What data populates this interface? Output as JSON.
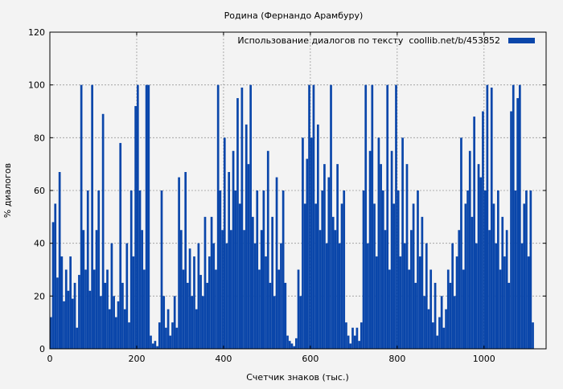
{
  "chart_data": {
    "type": "bar",
    "title": "Родина (Фернандо Арамбуру)",
    "xlabel": "Счетчик знаков (тыс.)",
    "ylabel": "% диалогов",
    "legend": {
      "label": "Использование диалогов по тексту  coollib.net/b/453852",
      "placement": "top-right"
    },
    "color": "#0a46aa",
    "grid": true,
    "xlim": [
      0,
      1143
    ],
    "ylim": [
      0,
      120
    ],
    "xticks": [
      0,
      200,
      400,
      600,
      800,
      1000
    ],
    "yticks": [
      0,
      20,
      40,
      60,
      80,
      100,
      120
    ],
    "x_step": 5,
    "values": [
      12,
      48,
      55,
      27,
      67,
      35,
      18,
      30,
      22,
      35,
      19,
      25,
      8,
      28,
      100,
      45,
      30,
      60,
      22,
      100,
      30,
      45,
      60,
      20,
      89,
      25,
      30,
      15,
      40,
      20,
      12,
      18,
      78,
      25,
      15,
      40,
      10,
      60,
      35,
      92,
      100,
      60,
      45,
      30,
      100,
      100,
      5,
      2,
      3,
      1,
      10,
      60,
      20,
      8,
      15,
      5,
      10,
      20,
      8,
      65,
      45,
      30,
      67,
      25,
      38,
      20,
      35,
      15,
      40,
      28,
      20,
      50,
      25,
      35,
      50,
      40,
      30,
      100,
      60,
      45,
      80,
      40,
      67,
      45,
      75,
      60,
      95,
      55,
      99,
      45,
      85,
      70,
      100,
      50,
      40,
      60,
      30,
      45,
      60,
      35,
      75,
      25,
      50,
      20,
      65,
      30,
      40,
      60,
      25,
      5,
      3,
      2,
      1,
      4,
      30,
      20,
      80,
      55,
      72,
      100,
      80,
      100,
      55,
      85,
      45,
      60,
      70,
      40,
      65,
      100,
      50,
      45,
      70,
      40,
      55,
      60,
      10,
      5,
      2,
      8,
      5,
      8,
      3,
      10,
      60,
      100,
      40,
      75,
      100,
      55,
      35,
      80,
      70,
      60,
      45,
      100,
      30,
      75,
      55,
      100,
      60,
      35,
      80,
      40,
      70,
      30,
      45,
      55,
      25,
      60,
      35,
      50,
      20,
      40,
      15,
      30,
      10,
      25,
      5,
      12,
      20,
      8,
      15,
      30,
      25,
      40,
      20,
      35,
      45,
      80,
      30,
      55,
      60,
      75,
      50,
      88,
      40,
      70,
      65,
      90,
      60,
      100,
      45,
      99,
      55,
      40,
      60,
      30,
      50,
      35,
      45,
      25,
      90,
      100,
      60,
      95,
      100,
      40,
      55,
      60,
      35,
      60,
      10
    ]
  }
}
